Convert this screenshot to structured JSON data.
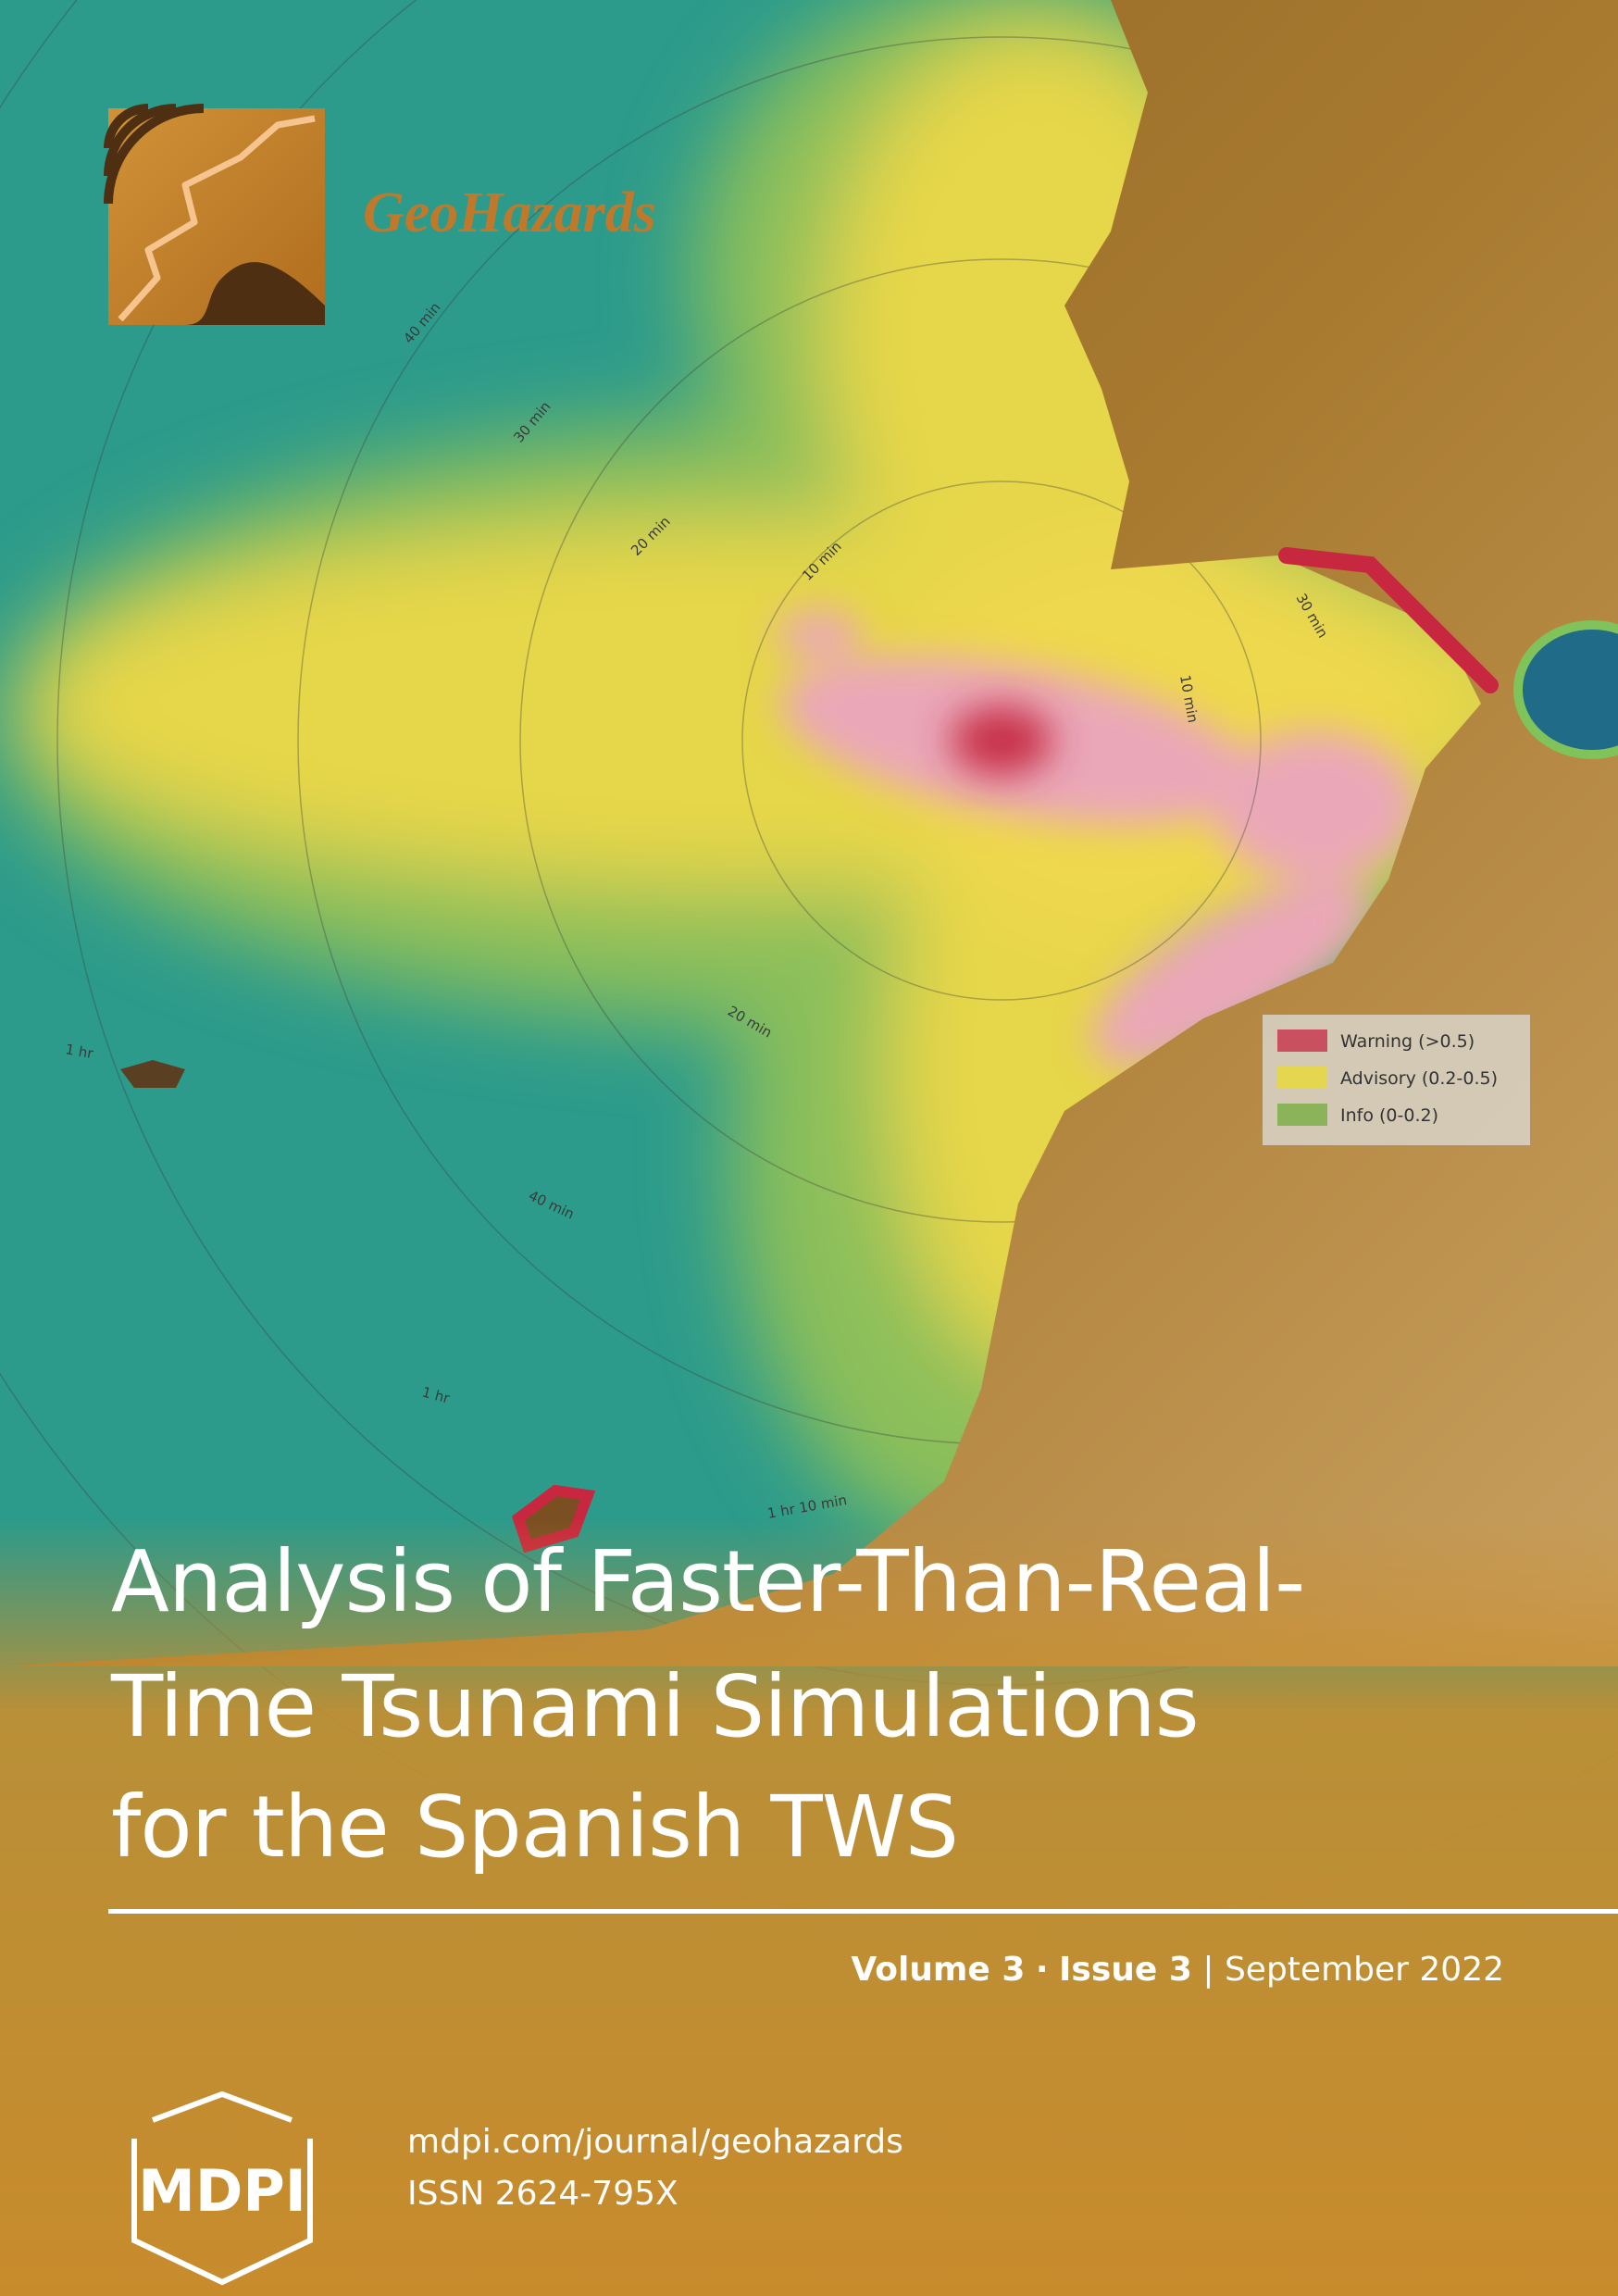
{
  "journal": "GeoHazards",
  "title_lines": [
    "Analysis of Faster-Than-Real-",
    "Time Tsunami Simulations",
    "for the Spanish TWS"
  ],
  "issue_line": {
    "volume": "Volume 3",
    "separator": "·",
    "issue": "Issue 3",
    "divider": "|",
    "date": "September 2022"
  },
  "publisher": "MDPI",
  "url": "mdpi.com/journal/geohazards",
  "issn": "ISSN 2624-795X",
  "legend": [
    "Warning (>0.5)",
    "Advisory (0.2-0.5)",
    "Info (0-0.2)"
  ],
  "contour_labels": [
    "40 min",
    "30 min",
    "20 min",
    "10 min",
    "30 min",
    "10 min",
    "20 min",
    "1 hr",
    "40 min",
    "1 hr",
    "1 hr 10 min"
  ]
}
